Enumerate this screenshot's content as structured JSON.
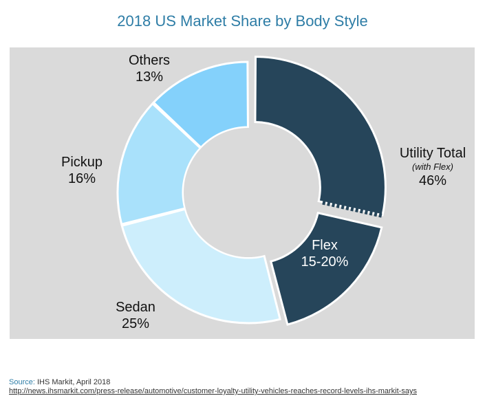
{
  "chart_data": {
    "type": "pie",
    "title": "2018 US Market Share by Body Style",
    "slices": [
      {
        "label": "Utility Total",
        "note": "(with Flex)",
        "value_text": "46%",
        "value": 46,
        "color": "#26455a"
      },
      {
        "label": "Flex",
        "value_text": "15-20%",
        "value": 17.5,
        "color": "#26455a"
      },
      {
        "label": "Sedan",
        "value_text": "25%",
        "value": 25,
        "color": "#cdeefc"
      },
      {
        "label": "Pickup",
        "value_text": "16%",
        "value": 16,
        "color": "#a9e1fb"
      },
      {
        "label": "Others",
        "value_text": "13%",
        "value": 13,
        "color": "#84d1fb"
      }
    ],
    "background": "#dadada"
  },
  "footer": {
    "source_label": "Source:",
    "source_text": "IHS Markit, April 2018",
    "url": "http://news.ihsmarkit.com/press-release/automotive/customer-loyalty-utility-vehicles-reaches-record-levels-ihs-markit-says"
  }
}
